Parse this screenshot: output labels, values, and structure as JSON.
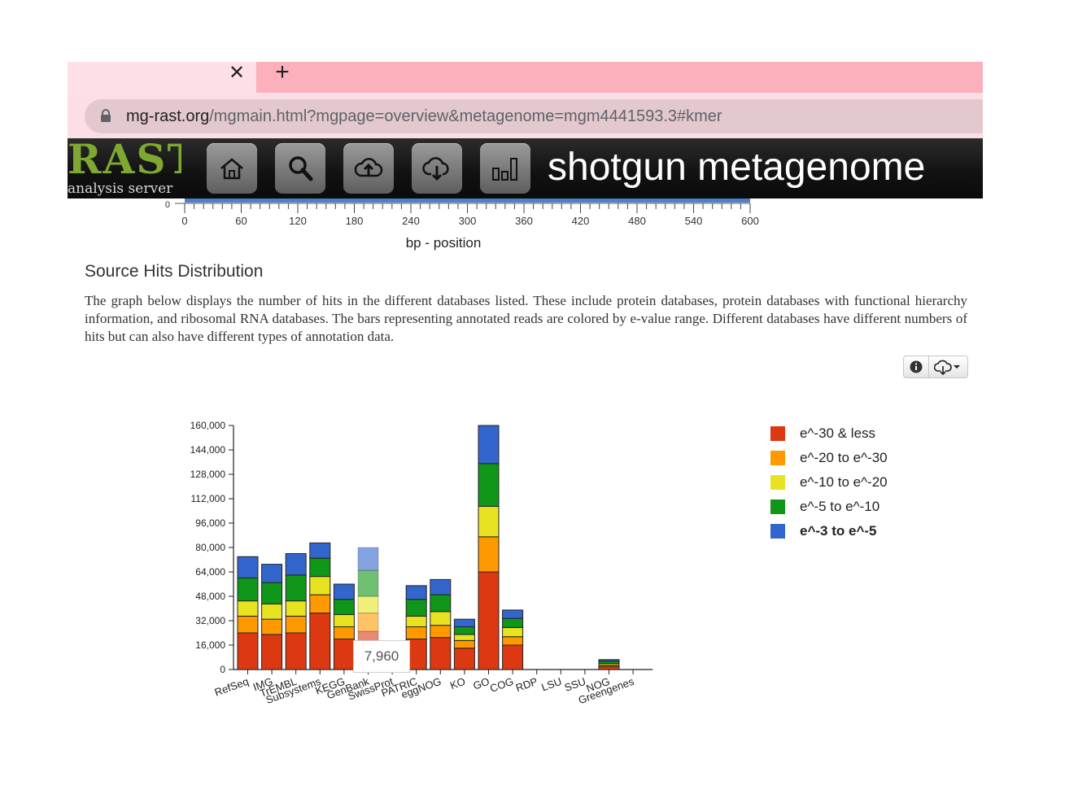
{
  "browser": {
    "tab_close_icon": "close-icon",
    "new_tab_icon": "plus-icon",
    "url_host": "mg-rast.org",
    "url_path": "/mgmain.html?mgpage=overview&metagenome=mgm4441593.3#kmer"
  },
  "app": {
    "logo_text": "RAST",
    "logo_subtext": "analysis server",
    "nav_icons": [
      "home-icon",
      "search-icon",
      "upload-icon",
      "download-icon",
      "analysis-icon"
    ],
    "title": "shotgun metagenome"
  },
  "position_axis": {
    "zero_label": "0",
    "ticks": [
      "0",
      "60",
      "120",
      "180",
      "240",
      "300",
      "360",
      "420",
      "480",
      "540",
      "600"
    ],
    "xlabel": "bp - position"
  },
  "section": {
    "title": "Source Hits Distribution",
    "description": "The graph below displays the number of hits in the different databases listed. These include protein databases, protein databases with functional hierarchy information, and ribosomal RNA databases. The bars representing annotated reads are colored by e-value range. Different databases have different numbers of hits but can also have different types of annotation data."
  },
  "chart_tools": {
    "info_icon": "info-icon",
    "download_icon": "cloud-download-icon"
  },
  "chart_data": {
    "type": "bar",
    "stacked": true,
    "categories": [
      "RefSeq",
      "IMG",
      "TrEMBL",
      "Subsystems",
      "KEGG",
      "GenBank",
      "SwissProt",
      "PATRIC",
      "eggNOG",
      "KO",
      "GO",
      "COG",
      "RDP",
      "LSU",
      "SSU",
      "NOG",
      "Greengenes"
    ],
    "yticks": [
      "0",
      "16,000",
      "32,000",
      "48,000",
      "64,000",
      "80,000",
      "96,000",
      "112,000",
      "128,000",
      "144,000",
      "160,000"
    ],
    "ylim": [
      0,
      160000
    ],
    "highlighted_category": "GenBank",
    "tooltip": "7,960",
    "series": [
      {
        "name": "e^-30 & less",
        "color": "#dc3912",
        "values": [
          24000,
          23000,
          24000,
          37000,
          20000,
          25000,
          0,
          20000,
          21000,
          14000,
          64000,
          16000,
          0,
          0,
          0,
          2000,
          0
        ]
      },
      {
        "name": "e^-20 to e^-30",
        "color": "#ff9900",
        "values": [
          11000,
          10000,
          11000,
          12000,
          8000,
          12000,
          0,
          8000,
          8000,
          5000,
          23000,
          5500,
          0,
          0,
          0,
          1000,
          0
        ]
      },
      {
        "name": "e^-10 to e^-20",
        "color": "#e8e321",
        "values": [
          10000,
          10000,
          10000,
          12000,
          8000,
          11000,
          0,
          7000,
          9000,
          4000,
          20000,
          6000,
          0,
          0,
          0,
          1000,
          0
        ]
      },
      {
        "name": "e^-5 to e^-10",
        "color": "#109618",
        "values": [
          15000,
          14000,
          17000,
          12000,
          10000,
          17000,
          0,
          11000,
          11000,
          5000,
          28000,
          6000,
          0,
          0,
          0,
          1500,
          0
        ]
      },
      {
        "name": "e^-3 to e^-5",
        "color": "#3366cc",
        "values": [
          14000,
          12000,
          14000,
          10000,
          10000,
          15000,
          0,
          9000,
          10000,
          5000,
          25000,
          5500,
          0,
          0,
          0,
          1000,
          0
        ]
      }
    ],
    "legend_position": "right",
    "legend_bold_entry": "e^-3 to e^-5"
  }
}
